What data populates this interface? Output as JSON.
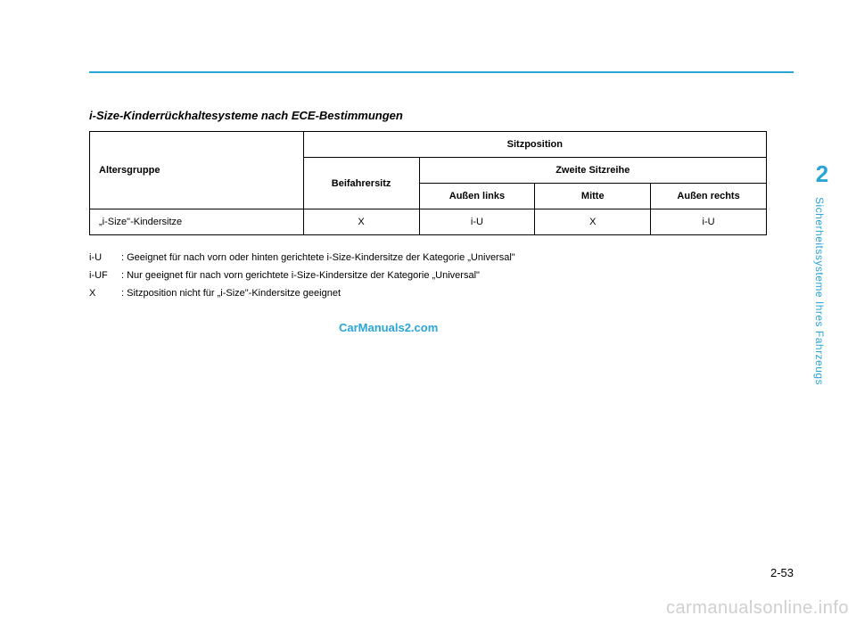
{
  "colors": {
    "accent": "#2aa5d6",
    "table_border": "#000000",
    "side_tab": "#2aa5d6",
    "text": "#000000",
    "wm_center": "#2aa5d6",
    "wm_footer": "#cfcfcf"
  },
  "heading": "i-Size-Kinderrückhaltesysteme nach ECE-Bestimmungen",
  "table": {
    "header": {
      "age_group": "Altersgruppe",
      "seatpos": "Sitzposition",
      "front": "Beifahrersitz",
      "second_row": "Zweite Sitzreihe",
      "outer_left": "Außen links",
      "center": "Mitte",
      "outer_right": "Außen rechts"
    },
    "row": {
      "label": "„i-Size\"-Kindersitze",
      "front": "X",
      "outer_left": "i-U",
      "center": "X",
      "outer_right": "i-U"
    }
  },
  "legend": {
    "items": [
      {
        "key": "i-U",
        "text": ": Geeignet für nach vorn oder hinten gerichtete  i-Size-Kindersitze der Kategorie „Universal\""
      },
      {
        "key": "i-UF",
        "text": ": Nur geeignet für nach vorn gerichtete  i-Size-Kindersitze der Kategorie „Universal\""
      },
      {
        "key": "X",
        "text": ": Sitzposition nicht für „i-Size\"-Kindersitze geeignet"
      }
    ]
  },
  "watermark_center": "CarManuals2.com",
  "side": {
    "num": "2",
    "label": "Sicherheitssysteme Ihres Fahrzeugs"
  },
  "page_num": "2-53",
  "footer_wm": "carmanualsonline.info"
}
